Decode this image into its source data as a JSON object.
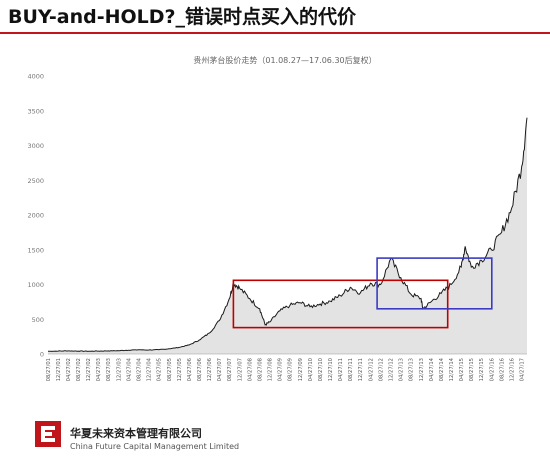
{
  "slide": {
    "title": "BUY-and-HOLD?_错误时点买入的代价"
  },
  "footer": {
    "company_cn": "华夏未来资本管理有限公司",
    "company_en": "China Future Capital Management Limited"
  },
  "colors": {
    "accent_red": "#c0161b",
    "line": "#1a1a1a",
    "area_fill": "#e3e3e3",
    "box_red": "#c00000",
    "box_blue": "#3b3bc4"
  },
  "chart_data": {
    "type": "area",
    "title": "贵州茅台股价走势（01.08.27—17.06.30后复权）",
    "ylim": [
      0,
      4000
    ],
    "y_ticks": [
      0,
      500,
      1000,
      1500,
      2000,
      2500,
      3000,
      3500,
      4000
    ],
    "x_ticks": [
      "2001-08-27",
      "2001-12-27",
      "2002-04-27",
      "2002-08-27",
      "2002-12-27",
      "2003-04-27",
      "2003-08-27",
      "2003-12-27",
      "2004-04-27",
      "2004-08-27",
      "2004-12-27",
      "2005-04-27",
      "2005-08-27",
      "2005-12-27",
      "2006-04-27",
      "2006-08-27",
      "2006-12-27",
      "2007-04-27",
      "2007-08-27",
      "2007-12-27",
      "2008-04-27",
      "2008-08-27",
      "2008-12-27",
      "2009-04-27",
      "2009-08-27",
      "2009-12-27",
      "2010-04-27",
      "2010-08-27",
      "2010-12-27",
      "2011-04-27",
      "2011-08-27",
      "2011-12-27",
      "2012-04-27",
      "2012-08-27",
      "2012-12-27",
      "2013-04-27",
      "2013-08-27",
      "2013-12-27",
      "2014-04-27",
      "2014-08-27",
      "2014-12-27",
      "2015-04-27",
      "2015-08-27",
      "2015-12-27",
      "2016-04-27",
      "2016-08-27",
      "2016-12-27",
      "2017-04-27"
    ],
    "x_tick_labels": [
      "08/27/01",
      "12/27/01",
      "04/27/02",
      "08/27/02",
      "12/27/02",
      "04/27/03",
      "08/27/03",
      "12/27/03",
      "04/27/04",
      "08/27/04",
      "12/27/04",
      "04/27/05",
      "08/27/05",
      "12/27/05",
      "04/27/06",
      "08/27/06",
      "12/27/06",
      "04/27/07",
      "08/27/07",
      "12/27/07",
      "04/27/08",
      "08/27/08",
      "12/27/08",
      "04/27/09",
      "08/27/09",
      "12/27/09",
      "04/27/10",
      "08/27/10",
      "12/27/10",
      "04/27/11",
      "08/27/11",
      "12/27/11",
      "04/27/12",
      "08/27/12",
      "12/27/12",
      "04/27/13",
      "08/27/13",
      "12/27/13",
      "04/27/14",
      "08/27/14",
      "12/27/14",
      "04/27/15",
      "08/27/15",
      "12/27/15",
      "04/27/16",
      "08/27/16",
      "12/27/16",
      "04/27/17"
    ],
    "series": [
      {
        "x": [
          "2001-08-27",
          "2001-12-27",
          "2002-04-27",
          "2002-08-27",
          "2002-12-27",
          "2003-04-27",
          "2003-08-27",
          "2003-12-27",
          "2004-04-27",
          "2004-08-27",
          "2004-12-27",
          "2005-04-27",
          "2005-08-27",
          "2005-12-27",
          "2006-04-27",
          "2006-08-27",
          "2006-12-27",
          "2007-04-27",
          "2007-08-27",
          "2007-10-15",
          "2007-12-27",
          "2008-04-27",
          "2008-08-27",
          "2008-11-01",
          "2008-12-27",
          "2009-04-27",
          "2009-08-27",
          "2009-12-27",
          "2010-04-27",
          "2010-08-27",
          "2010-12-27",
          "2011-04-27",
          "2011-08-27",
          "2011-12-27",
          "2012-04-27",
          "2012-08-27",
          "2012-12-27",
          "2013-04-27",
          "2013-08-27",
          "2013-12-27",
          "2014-01-20",
          "2014-04-27",
          "2014-08-27",
          "2014-12-27",
          "2015-04-27",
          "2015-06-15",
          "2015-08-27",
          "2015-12-27",
          "2016-04-27",
          "2016-08-27",
          "2016-12-27",
          "2017-04-27",
          "2017-06-30"
        ],
        "values": [
          40,
          42,
          45,
          42,
          40,
          42,
          45,
          48,
          55,
          60,
          58,
          62,
          75,
          95,
          130,
          200,
          300,
          480,
          800,
          1020,
          950,
          800,
          650,
          420,
          460,
          620,
          700,
          740,
          680,
          720,
          760,
          840,
          960,
          880,
          1020,
          1000,
          1370,
          1100,
          860,
          800,
          650,
          750,
          870,
          1000,
          1250,
          1550,
          1250,
          1350,
          1500,
          1750,
          2100,
          2700,
          3400
        ]
      }
    ],
    "annotations": [
      {
        "type": "box",
        "color": "red",
        "x_range": [
          "2007-10-15",
          "2014-11-15"
        ],
        "y_range": [
          380,
          1060
        ]
      },
      {
        "type": "box",
        "color": "blue",
        "x_range": [
          "2012-07-15",
          "2016-05-01"
        ],
        "y_range": [
          650,
          1380
        ]
      }
    ],
    "grid": false,
    "xlabel": "",
    "ylabel": ""
  }
}
